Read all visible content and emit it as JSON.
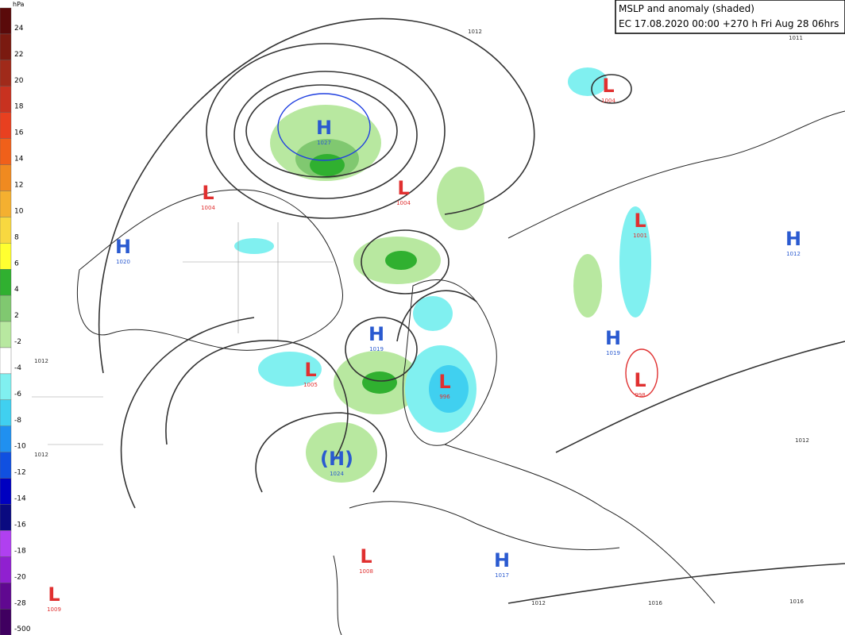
{
  "header": {
    "title": "MSLP and anomaly (shaded)",
    "subtitle": "EC 17.08.2020 00:00 +270 h Fri Aug 28 06hrs"
  },
  "colorbar": {
    "unit": "hPa",
    "labels": [
      "24",
      "22",
      "20",
      "18",
      "16",
      "14",
      "12",
      "10",
      "8",
      "6",
      "4",
      "2",
      "-2",
      "-4",
      "-6",
      "-8",
      "-10",
      "-12",
      "-14",
      "-16",
      "-18",
      "-20",
      "-28",
      "-500"
    ],
    "colors": [
      "#5a0a0a",
      "#7a1a10",
      "#a02a1a",
      "#c83220",
      "#e84020",
      "#f0601a",
      "#f08a20",
      "#f4b030",
      "#f8d840",
      "#ffff30",
      "#30b030",
      "#80c870",
      "#b8e8a0",
      "#ffffff",
      "#80f0f0",
      "#40d0f0",
      "#2090f0",
      "#1050e0",
      "#0000c0",
      "#0a0a80",
      "#b040f0",
      "#9020d0",
      "#600890",
      "#400060"
    ]
  },
  "systems": [
    {
      "letter": "H",
      "value": "1027"
    },
    {
      "letter": "L",
      "value": "1004"
    },
    {
      "letter": "L",
      "value": "1004"
    },
    {
      "letter": "L",
      "value": "1004"
    },
    {
      "letter": "H",
      "value": "1020"
    },
    {
      "letter": "L",
      "value": "1001"
    },
    {
      "letter": "H",
      "value": "1012"
    },
    {
      "letter": "H",
      "value": "1019"
    },
    {
      "letter": "L",
      "value": "1005"
    },
    {
      "letter": "L",
      "value": "996"
    },
    {
      "letter": "H",
      "value": "1019"
    },
    {
      "letter": "L",
      "value": "998"
    },
    {
      "letter": "(H)",
      "value": "1024"
    },
    {
      "letter": "L",
      "value": "1008"
    },
    {
      "letter": "H",
      "value": "1017"
    },
    {
      "letter": "L",
      "value": "1009"
    }
  ],
  "isobar_labels": [
    "1012",
    "1011",
    "1012",
    "1012",
    "1012",
    "1016",
    "1016",
    "1012"
  ]
}
